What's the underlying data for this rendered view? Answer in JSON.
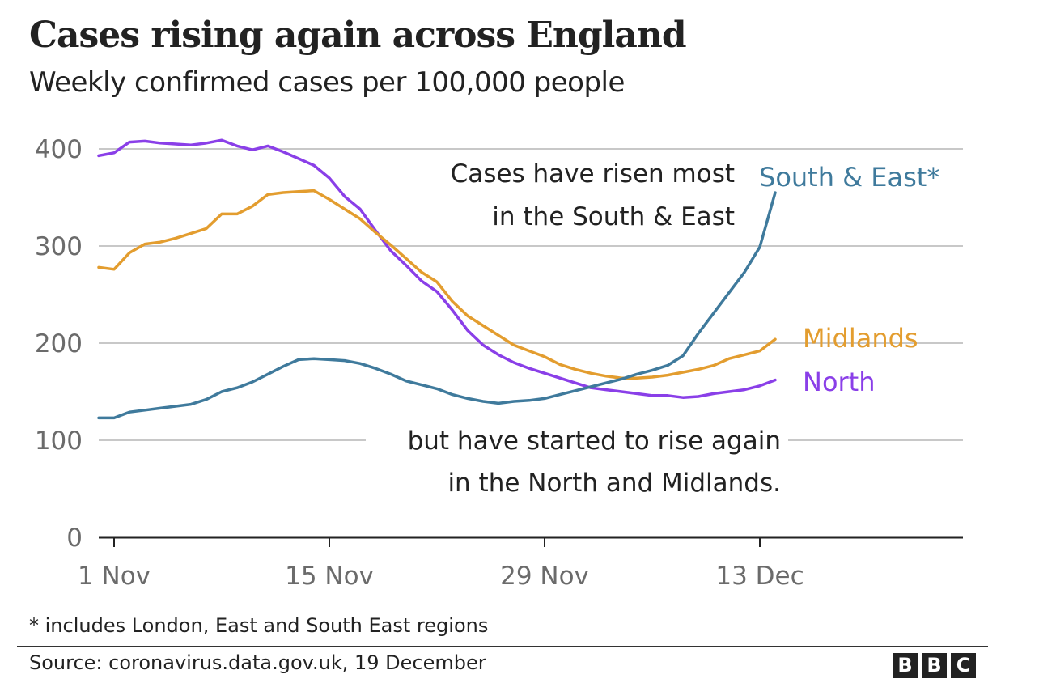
{
  "header": {
    "title": "Cases rising again across England",
    "subtitle": "Weekly confirmed cases per 100,000 people"
  },
  "footer": {
    "footnote": "* includes London, East and South East regions",
    "source": "Source: coronavirus.data.gov.uk, 19 December",
    "logo": [
      "B",
      "B",
      "C"
    ]
  },
  "chart_data": {
    "type": "line",
    "title": "Cases rising again across England",
    "subtitle": "Weekly confirmed cases per 100,000 people",
    "xlabel": "",
    "ylabel": "",
    "x_start": "31 Oct",
    "x_end": "14 Dec",
    "x_unit": "day",
    "xlim_days_from_1_nov": [
      -1,
      55
    ],
    "ylim": [
      0,
      400
    ],
    "yticks": [
      0,
      100,
      200,
      300,
      400
    ],
    "ytick_labels": [
      "0",
      "100",
      "200",
      "300",
      "400"
    ],
    "xticks_days_from_1_nov": [
      0,
      14,
      28,
      42
    ],
    "xtick_labels": [
      "1 Nov",
      "15 Nov",
      "29 Nov",
      "13 Dec"
    ],
    "grid": true,
    "legend": "inline-right",
    "series": [
      {
        "name": "North",
        "label": "North",
        "color": "#8a3fe8",
        "start_day_from_1_nov": -1,
        "values": [
          393,
          396,
          407,
          408,
          406,
          405,
          404,
          406,
          409,
          403,
          399,
          403,
          397,
          390,
          383,
          370,
          351,
          338,
          316,
          295,
          280,
          264,
          253,
          234,
          213,
          198,
          188,
          180,
          174,
          169,
          164,
          159,
          154,
          152,
          150,
          148,
          146,
          146,
          144,
          145,
          148,
          150,
          152,
          156,
          162
        ]
      },
      {
        "name": "Midlands",
        "label": "Midlands",
        "color": "#e39d2f",
        "start_day_from_1_nov": -1,
        "values": [
          278,
          276,
          293,
          302,
          304,
          308,
          313,
          318,
          333,
          333,
          341,
          353,
          355,
          356,
          357,
          348,
          338,
          328,
          314,
          301,
          287,
          273,
          263,
          243,
          228,
          218,
          208,
          198,
          192,
          186,
          178,
          173,
          169,
          166,
          164,
          164,
          165,
          167,
          170,
          173,
          177,
          184,
          188,
          192,
          204
        ]
      },
      {
        "name": "South & East",
        "label": "South & East*",
        "color": "#3f7a9c",
        "start_day_from_1_nov": -1,
        "values": [
          123,
          123,
          129,
          131,
          133,
          135,
          137,
          142,
          150,
          154,
          160,
          168,
          176,
          183,
          184,
          183,
          182,
          179,
          174,
          168,
          161,
          157,
          153,
          147,
          143,
          140,
          138,
          140,
          141,
          143,
          147,
          151,
          155,
          159,
          163,
          168,
          172,
          177,
          187,
          210,
          231,
          252,
          273,
          299,
          355
        ]
      }
    ],
    "annotations": [
      {
        "lines": [
          "Cases have risen most",
          "in the South & East"
        ]
      },
      {
        "lines": [
          "but have started to rise again",
          "in the North and Midlands."
        ]
      }
    ]
  }
}
